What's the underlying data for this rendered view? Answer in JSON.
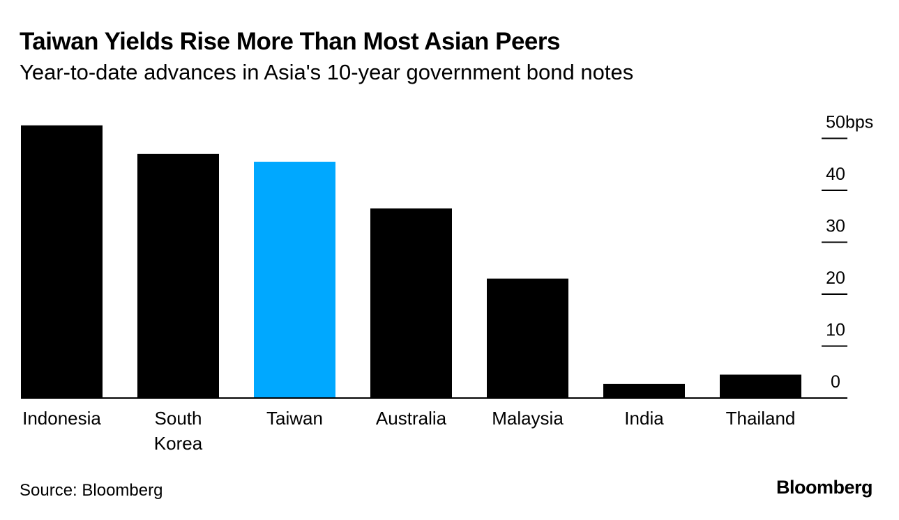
{
  "header": {
    "title": "Taiwan Yields Rise More Than Most Asian Peers",
    "subtitle": "Year-to-date advances in Asia's 10-year government bond notes"
  },
  "footer": {
    "source": "Source: Bloomberg",
    "brand": "Bloomberg"
  },
  "colors": {
    "default_bar": "#000000",
    "highlight_bar": "#00a8ff",
    "axis": "#000000"
  },
  "chart_data": {
    "type": "bar",
    "title": "Taiwan Yields Rise More Than Most Asian Peers",
    "subtitle": "Year-to-date advances in Asia's 10-year government bond notes",
    "categories": [
      "Indonesia",
      "South Korea",
      "Taiwan",
      "Australia",
      "Malaysia",
      "India",
      "Thailand"
    ],
    "category_lines": [
      [
        "Indonesia"
      ],
      [
        "South",
        "Korea"
      ],
      [
        "Taiwan"
      ],
      [
        "Australia"
      ],
      [
        "Malaysia"
      ],
      [
        "India"
      ],
      [
        "Thailand"
      ]
    ],
    "values": [
      52.5,
      47,
      45.5,
      36.5,
      23,
      2.7,
      4.5
    ],
    "highlight": "Taiwan",
    "unit": "bps",
    "ylim": [
      0,
      50
    ],
    "yticks": [
      0,
      10,
      20,
      30,
      40,
      50
    ],
    "y_axis_position": "right",
    "xlabel": "",
    "ylabel": ""
  }
}
